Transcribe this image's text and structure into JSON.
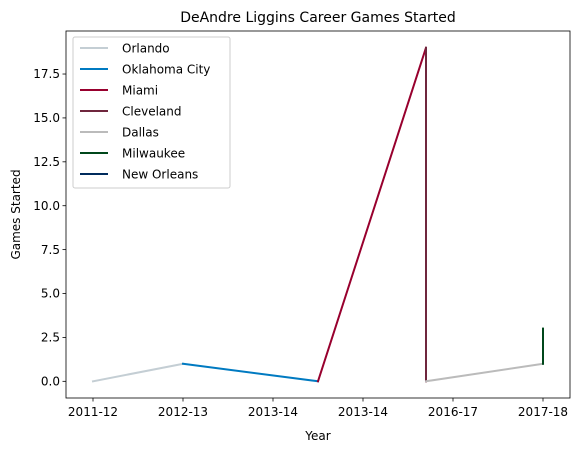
{
  "chart_data": {
    "type": "line",
    "title": "DeAndre Liggins Career Games Started",
    "xlabel": "Year",
    "ylabel": "Games Started",
    "categories": [
      "2011-12",
      "2012-13",
      "2013-14",
      "2013-14",
      "2016-17",
      "2017-18"
    ],
    "x_range": [
      -0.3,
      5.3
    ],
    "ylim": [
      -0.95,
      19.95
    ],
    "yticks": [
      0.0,
      2.5,
      5.0,
      7.5,
      10.0,
      12.5,
      15.0,
      17.5
    ],
    "ytick_labels": [
      "0.0",
      "2.5",
      "5.0",
      "7.5",
      "10.0",
      "12.5",
      "15.0",
      "17.5"
    ],
    "legend_position": "top-left",
    "series": [
      {
        "name": "Orlando",
        "color": "#c4ced4",
        "points": [
          [
            0,
            0
          ],
          [
            1,
            1
          ]
        ]
      },
      {
        "name": "Oklahoma City",
        "color": "#007ac1",
        "points": [
          [
            1,
            1
          ],
          [
            2.5,
            0
          ]
        ]
      },
      {
        "name": "Miami",
        "color": "#98002e",
        "points": [
          [
            2.5,
            0
          ],
          [
            3.7,
            19
          ],
          [
            3.7,
            0
          ]
        ]
      },
      {
        "name": "Cleveland",
        "color": "#6f263d",
        "points": [
          [
            3.7,
            19
          ],
          [
            3.7,
            0
          ]
        ]
      },
      {
        "name": "Dallas",
        "color": "#bbbbbb",
        "points": [
          [
            3.7,
            0
          ],
          [
            5,
            1
          ]
        ]
      },
      {
        "name": "Milwaukee",
        "color": "#00471b",
        "points": [
          [
            5,
            1
          ],
          [
            5,
            3
          ]
        ]
      },
      {
        "name": "New Orleans",
        "color": "#002b5c",
        "points": []
      }
    ]
  }
}
